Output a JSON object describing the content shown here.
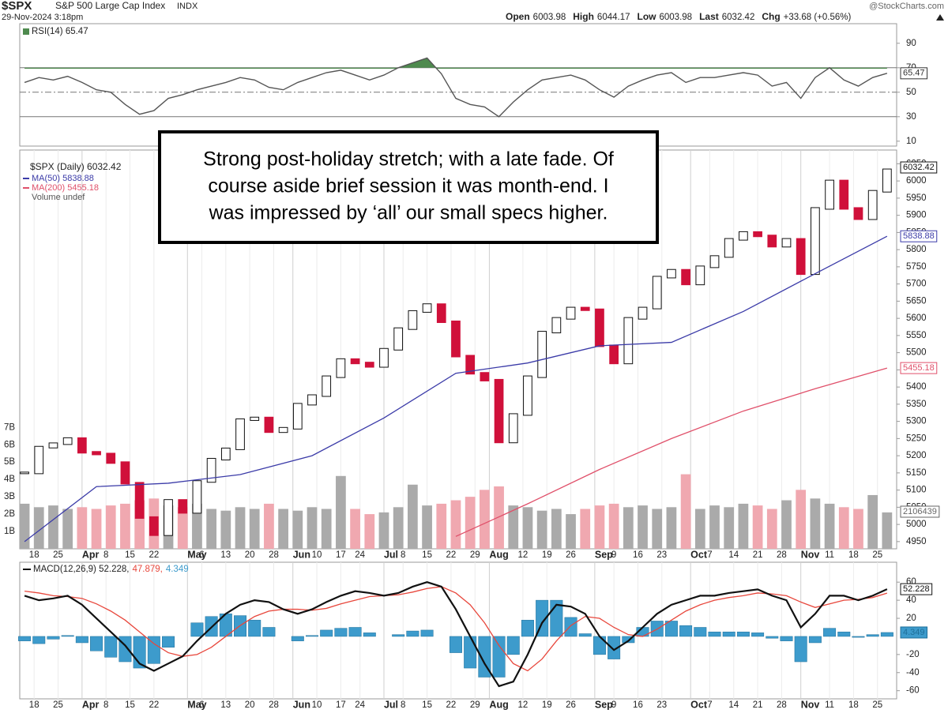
{
  "header": {
    "symbol": "$SPX",
    "name": "S&P 500 Large Cap Index",
    "exchange": "INDX",
    "datetime": "29-Nov-2024 3:18pm",
    "source": "@StockCharts.com",
    "quote": [
      {
        "label": "Open",
        "value": "6003.98"
      },
      {
        "label": "High",
        "value": "6044.17"
      },
      {
        "label": "Low",
        "value": "6003.98"
      },
      {
        "label": "Last",
        "value": "6032.42"
      },
      {
        "label": "Chg",
        "value": "+33.68 (+0.56%)"
      }
    ]
  },
  "chart_data": [
    {
      "type": "line",
      "legend": "RSI(14) 65.47",
      "color": "#555555",
      "overbought_color": "#4e8a4e",
      "x": [
        0,
        3,
        6,
        9,
        12,
        15,
        18,
        21,
        24,
        27,
        30,
        33,
        36,
        39,
        42,
        45,
        48,
        51,
        54,
        57,
        60,
        63,
        66,
        69,
        72,
        75,
        78,
        81,
        84,
        87,
        90,
        93,
        96,
        99,
        102,
        105,
        108,
        111,
        114,
        117,
        120,
        123,
        126,
        129,
        132,
        135,
        138,
        141,
        144,
        147,
        150,
        153,
        156,
        159,
        162,
        165,
        168,
        171,
        174,
        177,
        180
      ],
      "values": [
        58,
        62,
        60,
        63,
        58,
        52,
        50,
        40,
        32,
        35,
        45,
        48,
        52,
        55,
        58,
        62,
        60,
        54,
        52,
        58,
        62,
        66,
        68,
        64,
        60,
        64,
        70,
        74,
        78,
        65,
        45,
        40,
        38,
        30,
        42,
        52,
        60,
        62,
        64,
        60,
        52,
        46,
        55,
        60,
        64,
        66,
        58,
        62,
        62,
        64,
        66,
        64,
        55,
        58,
        45,
        62,
        70,
        60,
        55,
        62,
        65.47
      ],
      "last_label": "65.47",
      "xlim": [
        -1,
        182
      ],
      "ylim": [
        6,
        106
      ],
      "yticks": [
        10,
        30,
        50,
        70,
        90
      ],
      "levels": [
        30,
        50,
        70
      ]
    },
    {
      "type": "candlestick",
      "legend": "$SPX (Daily) 6032.42",
      "color_up": "#ffffff",
      "color_down": "#d0103a",
      "x": [
        0,
        3,
        6,
        9,
        12,
        15,
        18,
        21,
        24,
        27,
        30,
        33,
        36,
        39,
        42,
        45,
        48,
        51,
        54,
        57,
        60,
        63,
        66,
        69,
        72,
        75,
        78,
        81,
        84,
        87,
        90,
        93,
        96,
        99,
        102,
        105,
        108,
        111,
        114,
        117,
        120,
        123,
        126,
        129,
        132,
        135,
        138,
        141,
        144,
        147,
        150,
        153,
        156,
        159,
        162,
        165,
        168,
        171,
        174,
        177,
        180
      ],
      "values": [
        5150,
        5225,
        5235,
        5250,
        5210,
        5205,
        5180,
        5120,
        5020,
        4970,
        5070,
        5035,
        5125,
        5190,
        5220,
        5305,
        5310,
        5270,
        5280,
        5350,
        5375,
        5430,
        5480,
        5470,
        5460,
        5510,
        5570,
        5620,
        5640,
        5590,
        5490,
        5440,
        5420,
        5240,
        5320,
        5430,
        5560,
        5600,
        5630,
        5625,
        5520,
        5470,
        5600,
        5630,
        5720,
        5740,
        5700,
        5750,
        5780,
        5830,
        5850,
        5840,
        5810,
        5830,
        5730,
        5920,
        6000,
        5920,
        5890,
        5970,
        6032.42
      ],
      "last_label": "6032.42",
      "xlim": [
        -1,
        182
      ],
      "ylim": [
        4929,
        6090
      ],
      "yticks": [
        4950,
        5000,
        5050,
        5100,
        5150,
        5200,
        5250,
        5300,
        5350,
        5400,
        5450,
        5500,
        5550,
        5600,
        5650,
        5700,
        5750,
        5800,
        5850,
        5900,
        5950,
        6000,
        6050
      ],
      "xticks": [
        {
          "value": 2,
          "label": "18"
        },
        {
          "value": 7,
          "label": "25"
        },
        {
          "value": 12,
          "label": "Apr"
        },
        {
          "value": 17,
          "label": "8"
        },
        {
          "value": 22,
          "label": "15"
        },
        {
          "value": 27,
          "label": "22"
        },
        {
          "value": 34,
          "label": "May"
        },
        {
          "value": 37,
          "label": "6"
        },
        {
          "value": 42,
          "label": "13"
        },
        {
          "value": 47,
          "label": "20"
        },
        {
          "value": 52,
          "label": "28"
        },
        {
          "value": 56,
          "label": "Jun"
        },
        {
          "value": 61,
          "label": "10"
        },
        {
          "value": 66,
          "label": "17"
        },
        {
          "value": 70,
          "label": "24"
        },
        {
          "value": 75,
          "label": "Jul"
        },
        {
          "value": 79,
          "label": "8"
        },
        {
          "value": 84,
          "label": "15"
        },
        {
          "value": 89,
          "label": "22"
        },
        {
          "value": 94,
          "label": "29"
        },
        {
          "value": 97,
          "label": "Aug"
        },
        {
          "value": 104,
          "label": "12"
        },
        {
          "value": 109,
          "label": "19"
        },
        {
          "value": 114,
          "label": "26"
        },
        {
          "value": 119,
          "label": "Sep"
        },
        {
          "value": 123,
          "label": "9"
        },
        {
          "value": 128,
          "label": "16"
        },
        {
          "value": 133,
          "label": "23"
        },
        {
          "value": 139,
          "label": "Oct"
        },
        {
          "value": 143,
          "label": "7"
        },
        {
          "value": 148,
          "label": "14"
        },
        {
          "value": 153,
          "label": "21"
        },
        {
          "value": 158,
          "label": "28"
        },
        {
          "value": 162,
          "label": "Nov"
        },
        {
          "value": 168,
          "label": "11"
        },
        {
          "value": 173,
          "label": "18"
        },
        {
          "value": 178,
          "label": "25"
        }
      ],
      "series": [
        {
          "name": "MA(50) 5838.88",
          "color": "#3b3ba8",
          "x": [
            0,
            15,
            30,
            45,
            60,
            75,
            90,
            105,
            120,
            135,
            150,
            165,
            180
          ],
          "values": [
            4950,
            5110,
            5120,
            5145,
            5200,
            5310,
            5440,
            5470,
            5520,
            5530,
            5620,
            5730,
            5838.88
          ],
          "last_label": "5838.88"
        },
        {
          "name": "MA(200) 5455.18",
          "color": "#e0506a",
          "x": [
            90,
            105,
            120,
            135,
            150,
            165,
            180
          ],
          "values": [
            4965,
            5060,
            5160,
            5250,
            5330,
            5395,
            5455.18
          ],
          "last_label": "5455.18"
        }
      ],
      "volume": {
        "name": "Volume undef",
        "color_up": "#aaaaaa",
        "color_down": "#f0a8b0",
        "values": [
          2.6,
          2.4,
          2.5,
          2.3,
          2.4,
          2.3,
          2.5,
          2.6,
          2.8,
          2.9,
          2.5,
          2.4,
          2.6,
          2.3,
          2.2,
          2.4,
          2.3,
          2.6,
          2.3,
          2.2,
          2.4,
          2.3,
          4.2,
          2.3,
          2.0,
          2.1,
          2.4,
          3.7,
          2.5,
          2.6,
          2.8,
          3.0,
          3.4,
          3.6,
          2.5,
          2.4,
          2.2,
          2.3,
          2.0,
          2.3,
          2.5,
          2.6,
          2.4,
          2.5,
          2.3,
          2.4,
          4.3,
          2.3,
          2.5,
          2.4,
          2.6,
          2.5,
          2.3,
          2.8,
          3.4,
          2.9,
          2.6,
          2.4,
          2.3,
          3.1,
          2.1
        ],
        "ylim": [
          0,
          23
        ],
        "yticks": [
          {
            "value": 1,
            "label": "1B"
          },
          {
            "value": 2,
            "label": "2B"
          },
          {
            "value": 3,
            "label": "3B"
          },
          {
            "value": 4,
            "label": "4B"
          },
          {
            "value": 5,
            "label": "5B"
          },
          {
            "value": 6,
            "label": "6B"
          },
          {
            "value": 7,
            "label": "7B"
          }
        ],
        "last_label": "2106439"
      },
      "annotation": [
        "Strong post-holiday stretch; with a late fade. Of",
        "course aside brief session it was month-end. I",
        "was impressed by ‘all’ our small specs higher."
      ]
    },
    {
      "type": "macd",
      "x": [
        0,
        3,
        6,
        9,
        12,
        15,
        18,
        21,
        24,
        27,
        30,
        33,
        36,
        39,
        42,
        45,
        48,
        51,
        54,
        57,
        60,
        63,
        66,
        69,
        72,
        75,
        78,
        81,
        84,
        87,
        90,
        93,
        96,
        99,
        102,
        105,
        108,
        111,
        114,
        117,
        120,
        123,
        126,
        129,
        132,
        135,
        138,
        141,
        144,
        147,
        150,
        153,
        156,
        159,
        162,
        165,
        168,
        171,
        174,
        177,
        180
      ],
      "series": [
        {
          "name": "MACD(12,26,9) 52.228,",
          "color": "#111111",
          "values": [
            45,
            40,
            42,
            45,
            35,
            20,
            5,
            -10,
            -30,
            -38,
            -30,
            -22,
            -5,
            10,
            25,
            35,
            40,
            38,
            30,
            25,
            30,
            38,
            45,
            50,
            48,
            45,
            48,
            55,
            60,
            55,
            30,
            0,
            -30,
            -55,
            -50,
            -20,
            15,
            35,
            33,
            25,
            0,
            -15,
            -5,
            10,
            25,
            35,
            40,
            45,
            45,
            48,
            50,
            52,
            45,
            40,
            10,
            25,
            45,
            45,
            40,
            45,
            52.228
          ],
          "last_label": "52.228"
        },
        {
          "name": "47.879,",
          "color": "#e8473c",
          "values": [
            50,
            48,
            45,
            44,
            42,
            36,
            28,
            18,
            5,
            -8,
            -18,
            -22,
            -20,
            -12,
            0,
            12,
            22,
            28,
            30,
            30,
            29,
            31,
            36,
            40,
            44,
            45,
            46,
            49,
            53,
            55,
            48,
            35,
            15,
            -10,
            -30,
            -38,
            -25,
            -5,
            12,
            22,
            20,
            10,
            2,
            0,
            8,
            18,
            28,
            35,
            40,
            43,
            45,
            48,
            47,
            45,
            38,
            32,
            36,
            40,
            41,
            43,
            47.879
          ]
        },
        {
          "name": "4.349",
          "color": "#3d9bcc",
          "values": [
            -5,
            -8,
            -3,
            1,
            -7,
            -16,
            -23,
            -28,
            -35,
            -30,
            -12,
            0,
            15,
            22,
            25,
            23,
            18,
            10,
            0,
            -5,
            1,
            7,
            9,
            10,
            4,
            0,
            2,
            6,
            7,
            0,
            -18,
            -35,
            -45,
            -45,
            -20,
            18,
            40,
            40,
            21,
            3,
            -20,
            -25,
            -7,
            10,
            17,
            17,
            12,
            10,
            5,
            5,
            5,
            4,
            -2,
            -5,
            -28,
            -7,
            9,
            5,
            -1,
            2,
            4.349
          ],
          "last_label": "4.349"
        }
      ],
      "xlim": [
        -1,
        182
      ],
      "ylim": [
        -69,
        82
      ],
      "yticks": [
        -60,
        -40,
        -20,
        20,
        40,
        60
      ]
    }
  ]
}
